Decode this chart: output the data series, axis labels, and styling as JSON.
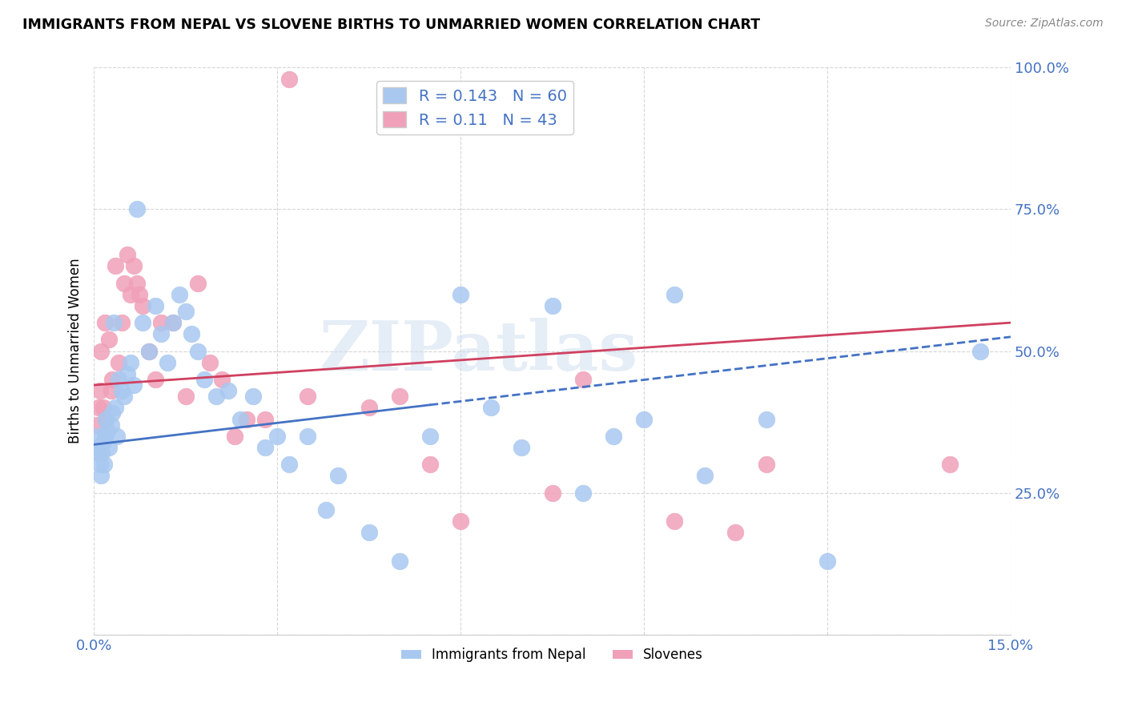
{
  "title": "IMMIGRANTS FROM NEPAL VS SLOVENE BIRTHS TO UNMARRIED WOMEN CORRELATION CHART",
  "source": "Source: ZipAtlas.com",
  "ylabel": "Births to Unmarried Women",
  "x_min": 0.0,
  "x_max": 15.0,
  "y_min": 0.0,
  "y_max": 100.0,
  "blue_color": "#A8C8F0",
  "pink_color": "#F0A0B8",
  "blue_line_color": "#4472C4",
  "pink_line_color": "#D04060",
  "R_blue": 0.143,
  "N_blue": 60,
  "R_pink": 0.11,
  "N_pink": 43,
  "legend_label_blue": "Immigrants from Nepal",
  "legend_label_pink": "Slovenes",
  "watermark": "ZIPatlas",
  "blue_scatter_x": [
    0.05,
    0.07,
    0.08,
    0.1,
    0.12,
    0.13,
    0.15,
    0.17,
    0.18,
    0.2,
    0.22,
    0.25,
    0.28,
    0.3,
    0.32,
    0.35,
    0.38,
    0.4,
    0.45,
    0.5,
    0.55,
    0.6,
    0.65,
    0.7,
    0.8,
    0.9,
    1.0,
    1.1,
    1.2,
    1.3,
    1.4,
    1.5,
    1.6,
    1.7,
    1.8,
    2.0,
    2.2,
    2.4,
    2.6,
    2.8,
    3.0,
    3.2,
    3.5,
    3.8,
    4.0,
    4.5,
    5.0,
    5.5,
    6.0,
    6.5,
    7.0,
    7.5,
    8.0,
    8.5,
    9.0,
    9.5,
    10.0,
    11.0,
    12.0,
    14.5
  ],
  "blue_scatter_y": [
    35,
    32,
    33,
    30,
    28,
    32,
    34,
    30,
    35,
    38,
    36,
    33,
    37,
    39,
    55,
    40,
    35,
    45,
    43,
    42,
    46,
    48,
    44,
    75,
    55,
    50,
    58,
    53,
    48,
    55,
    60,
    57,
    53,
    50,
    45,
    42,
    43,
    38,
    42,
    33,
    35,
    30,
    35,
    22,
    28,
    18,
    13,
    35,
    60,
    40,
    33,
    58,
    25,
    35,
    38,
    60,
    28,
    38,
    13,
    50
  ],
  "pink_scatter_x": [
    0.05,
    0.07,
    0.1,
    0.12,
    0.15,
    0.18,
    0.2,
    0.25,
    0.28,
    0.3,
    0.35,
    0.4,
    0.45,
    0.5,
    0.55,
    0.6,
    0.65,
    0.7,
    0.75,
    0.8,
    0.9,
    1.0,
    1.1,
    1.3,
    1.5,
    1.7,
    1.9,
    2.1,
    2.3,
    2.5,
    2.8,
    3.2,
    3.5,
    4.5,
    5.0,
    5.5,
    6.0,
    7.5,
    8.0,
    9.5,
    10.5,
    11.0,
    14.0
  ],
  "pink_scatter_y": [
    37,
    40,
    43,
    50,
    40,
    55,
    38,
    52,
    43,
    45,
    65,
    48,
    55,
    62,
    67,
    60,
    65,
    62,
    60,
    58,
    50,
    45,
    55,
    55,
    42,
    62,
    48,
    45,
    35,
    38,
    38,
    98,
    42,
    40,
    42,
    30,
    20,
    25,
    45,
    20,
    18,
    30,
    30
  ],
  "blue_line_x0": 0.0,
  "blue_line_y0": 33.5,
  "blue_solid_x1": 5.5,
  "blue_solid_y1": 40.5,
  "blue_dashed_x0": 5.5,
  "blue_dashed_y0": 40.5,
  "blue_dashed_x1": 15.0,
  "blue_dashed_y1": 52.5,
  "pink_line_x0": 0.0,
  "pink_line_y0": 44.0,
  "pink_line_x1": 15.0,
  "pink_line_y1": 55.0
}
